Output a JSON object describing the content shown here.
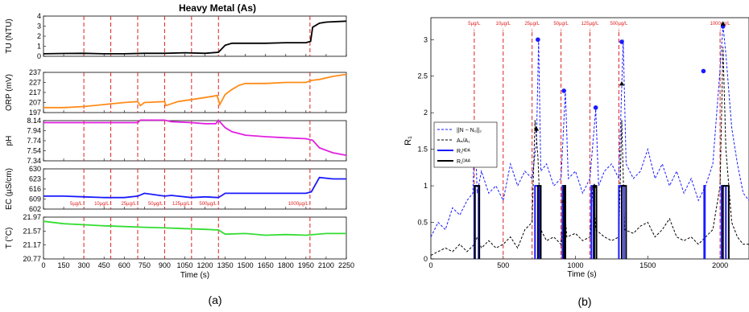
{
  "panel_labels": {
    "a": "(a)",
    "b": "(b)"
  },
  "chart_data": [
    {
      "type": "line",
      "panel": "a",
      "title": "Heavy Metal (As)",
      "xlabel": "Time (s)",
      "xlim": [
        0,
        2250
      ],
      "x_ticks": [
        0,
        150,
        300,
        450,
        600,
        750,
        900,
        1050,
        1200,
        1350,
        1500,
        1650,
        1800,
        1950,
        2100,
        2250
      ],
      "events": [
        {
          "x": 300,
          "label": "5µg/L"
        },
        {
          "x": 500,
          "label": "10µg/L"
        },
        {
          "x": 700,
          "label": "25µg/L"
        },
        {
          "x": 900,
          "label": "50µg/L"
        },
        {
          "x": 1100,
          "label": "125µg/L"
        },
        {
          "x": 1300,
          "label": "500µg/L"
        },
        {
          "x": 1980,
          "label": "1000µg/L"
        }
      ],
      "subplots": [
        {
          "ylabel": "TU (NTU)",
          "ylim": [
            0,
            4
          ],
          "y_ticks": [
            "0",
            "1",
            "2",
            "3",
            "4"
          ],
          "y_values": [
            0,
            1,
            2,
            3,
            4
          ],
          "color": "#000000",
          "series": {
            "x": [
              0,
              150,
              300,
              450,
              600,
              750,
              900,
              1050,
              1200,
              1300,
              1350,
              1400,
              1500,
              1650,
              1800,
              1950,
              1985,
              2000,
              2050,
              2100,
              2250
            ],
            "y": [
              0.25,
              0.28,
              0.3,
              0.25,
              0.25,
              0.3,
              0.3,
              0.35,
              0.3,
              0.4,
              1.1,
              1.3,
              1.3,
              1.3,
              1.35,
              1.35,
              1.5,
              2.9,
              3.3,
              3.4,
              3.5
            ]
          }
        },
        {
          "ylabel": "ORP (mV)",
          "ylim": [
            197,
            237
          ],
          "y_ticks": [
            "197",
            "207",
            "217",
            "227",
            "237"
          ],
          "y_values": [
            197,
            207,
            217,
            227,
            237
          ],
          "color": "#ff8c1a",
          "series": {
            "x": [
              0,
              150,
              300,
              450,
              600,
              700,
              720,
              750,
              900,
              910,
              1000,
              1100,
              1200,
              1290,
              1310,
              1350,
              1400,
              1450,
              1500,
              1650,
              1800,
              1950,
              1990,
              2050,
              2150,
              2250
            ],
            "y": [
              202,
              202,
              203,
              205,
              207,
              208,
              204,
              207,
              208,
              204,
              208,
              210,
              212,
              214,
              205,
              215,
              220,
              224,
              226,
              226,
              227,
              227,
              229,
              230,
              233,
              235
            ]
          }
        },
        {
          "ylabel": "pH",
          "ylim": [
            7.34,
            8.14
          ],
          "y_ticks": [
            "7.34",
            "7.54",
            "7.74",
            "7.94",
            "8.14"
          ],
          "y_values": [
            7.34,
            7.54,
            7.74,
            7.94,
            8.14
          ],
          "color": "#e020e0",
          "series": {
            "x": [
              0,
              150,
              300,
              450,
              600,
              700,
              720,
              900,
              950,
              1100,
              1200,
              1280,
              1300,
              1350,
              1400,
              1500,
              1650,
              1800,
              1950,
              2000,
              2050,
              2150,
              2250
            ],
            "y": [
              8.1,
              8.1,
              8.1,
              8.1,
              8.1,
              8.1,
              8.15,
              8.15,
              8.12,
              8.1,
              8.08,
              8.08,
              8.15,
              8.0,
              7.92,
              7.85,
              7.82,
              7.8,
              7.78,
              7.75,
              7.6,
              7.5,
              7.45
            ]
          }
        },
        {
          "ylabel": "EC (µS/cm)",
          "ylim": [
            602,
            630
          ],
          "y_ticks": [
            "602",
            "609",
            "616",
            "623",
            "630"
          ],
          "y_values": [
            602,
            609,
            616,
            623,
            630
          ],
          "color": "#1a1aff",
          "series": {
            "x": [
              0,
              150,
              300,
              450,
              600,
              700,
              750,
              900,
              950,
              1100,
              1200,
              1300,
              1350,
              1500,
              1650,
              1800,
              1950,
              1990,
              2050,
              2150,
              2250
            ],
            "y": [
              611,
              611,
              610.5,
              610,
              610,
              611,
              613,
              611,
              611.5,
              610,
              610.5,
              610,
              613,
              613,
              613,
              613,
              613,
              614,
              624,
              623,
              623
            ]
          }
        },
        {
          "ylabel": "T (°C)",
          "ylim": [
            20.77,
            21.97
          ],
          "y_ticks": [
            "20.77",
            "21.17",
            "21.57",
            "21.97"
          ],
          "y_values": [
            20.77,
            21.17,
            21.57,
            21.97
          ],
          "color": "#33dd33",
          "series": {
            "x": [
              0,
              150,
              300,
              450,
              600,
              750,
              900,
              1050,
              1200,
              1300,
              1350,
              1500,
              1650,
              1800,
              1950,
              2100,
              2250
            ],
            "y": [
              21.85,
              21.78,
              21.75,
              21.72,
              21.7,
              21.68,
              21.66,
              21.64,
              21.62,
              21.6,
              21.48,
              21.5,
              21.45,
              21.47,
              21.45,
              21.5,
              21.5
            ]
          }
        }
      ]
    },
    {
      "type": "line",
      "panel": "b",
      "xlabel": "Time (s)",
      "ylabel": "R₁",
      "xlim": [
        0,
        2200
      ],
      "ylim": [
        0,
        3.3
      ],
      "x_ticks": [
        0,
        500,
        1000,
        1500,
        2000
      ],
      "y_ticks": [
        0,
        0.5,
        1,
        1.5,
        2,
        2.5,
        3
      ],
      "legend_position": "left",
      "events": [
        {
          "x": 300,
          "label": "5µg/L"
        },
        {
          "x": 500,
          "label": "10µg/L"
        },
        {
          "x": 700,
          "label": "25µg/L"
        },
        {
          "x": 900,
          "label": "50µg/L"
        },
        {
          "x": 1100,
          "label": "125µg/L"
        },
        {
          "x": 1300,
          "label": "500µg/L"
        },
        {
          "x": 2000,
          "label": "1000µg/L"
        }
      ],
      "series": [
        {
          "name": "||N − N₀||₂",
          "color": "#1a1aff",
          "style": "dashed",
          "x": [
            0,
            50,
            100,
            150,
            200,
            250,
            290,
            305,
            320,
            350,
            400,
            450,
            500,
            550,
            600,
            650,
            700,
            730,
            745,
            760,
            800,
            850,
            900,
            930,
            950,
            1000,
            1050,
            1100,
            1140,
            1160,
            1200,
            1250,
            1300,
            1330,
            1350,
            1400,
            1450,
            1500,
            1550,
            1600,
            1650,
            1700,
            1750,
            1800,
            1850,
            1900,
            1950,
            2000,
            2020,
            2040,
            2080,
            2120,
            2160,
            2200
          ],
          "y": [
            0.3,
            0.5,
            0.4,
            0.7,
            0.6,
            0.8,
            0.9,
            1.8,
            0.9,
            1.2,
            0.9,
            1.0,
            0.8,
            1.3,
            1.0,
            1.2,
            1.1,
            1.6,
            3.0,
            1.2,
            1.3,
            1.0,
            1.1,
            2.3,
            1.1,
            1.2,
            0.9,
            1.1,
            2.05,
            1.0,
            1.2,
            1.3,
            1.1,
            3.0,
            1.3,
            1.1,
            1.2,
            1.5,
            1.1,
            1.3,
            1.0,
            1.2,
            0.9,
            1.1,
            0.8,
            1.0,
            1.3,
            2.6,
            3.2,
            2.8,
            1.8,
            1.3,
            0.9,
            0.8
          ]
        },
        {
          "name": "Aₙ/A₁",
          "color": "#000000",
          "style": "dashed",
          "x": [
            0,
            50,
            100,
            150,
            200,
            250,
            300,
            320,
            350,
            400,
            450,
            500,
            550,
            600,
            650,
            700,
            720,
            740,
            760,
            800,
            850,
            900,
            920,
            940,
            1000,
            1050,
            1100,
            1120,
            1140,
            1200,
            1250,
            1300,
            1320,
            1340,
            1400,
            1450,
            1500,
            1550,
            1600,
            1650,
            1700,
            1750,
            1800,
            1850,
            1900,
            1950,
            2000,
            2020,
            2040,
            2080,
            2120,
            2160,
            2200
          ],
          "y": [
            0.05,
            0.1,
            0.15,
            0.1,
            0.2,
            0.1,
            0.2,
            0.3,
            0.15,
            0.25,
            0.15,
            0.2,
            0.3,
            0.15,
            0.4,
            0.5,
            1.9,
            1.4,
            0.4,
            0.25,
            0.3,
            0.2,
            0.8,
            0.3,
            0.35,
            0.25,
            0.3,
            1.0,
            0.4,
            0.3,
            0.25,
            0.3,
            1.9,
            0.4,
            0.35,
            0.45,
            0.5,
            0.3,
            0.4,
            0.55,
            0.3,
            0.25,
            0.3,
            0.2,
            0.3,
            0.4,
            1.0,
            2.9,
            1.5,
            0.5,
            0.3,
            0.2,
            0.2
          ]
        },
        {
          "name": "R₁ᴴᴰᴬ",
          "color": "#1a1aff",
          "style": "solid",
          "spikes": [
            {
              "x0": 300,
              "x1": 330,
              "h": 1.0
            },
            {
              "x0": 720,
              "x1": 750,
              "h": 1.0
            },
            {
              "x0": 910,
              "x1": 925,
              "h": 1.0
            },
            {
              "x0": 1110,
              "x1": 1125,
              "h": 1.0
            },
            {
              "x0": 1300,
              "x1": 1335,
              "h": 1.0
            },
            {
              "x0": 1890,
              "x1": 1895,
              "h": 1.0
            },
            {
              "x0": 2010,
              "x1": 2040,
              "h": 1.0
            }
          ]
        },
        {
          "name": "R₁ᴰᴬᴬ",
          "color": "#000000",
          "style": "solid",
          "spikes": [
            {
              "x0": 305,
              "x1": 335,
              "h": 1.0
            },
            {
              "x0": 740,
              "x1": 760,
              "h": 1.0
            },
            {
              "x0": 920,
              "x1": 930,
              "h": 1.0
            },
            {
              "x0": 1130,
              "x1": 1145,
              "h": 1.0
            },
            {
              "x0": 1320,
              "x1": 1350,
              "h": 1.0
            },
            {
              "x0": 2020,
              "x1": 2060,
              "h": 1.0
            }
          ]
        }
      ],
      "markers": {
        "blue_dots": [
          {
            "x": 740,
            "y": 3.0
          },
          {
            "x": 920,
            "y": 2.3
          },
          {
            "x": 1140,
            "y": 2.07
          },
          {
            "x": 1320,
            "y": 2.97
          },
          {
            "x": 1885,
            "y": 2.57
          },
          {
            "x": 2020,
            "y": 3.18
          }
        ],
        "black_triangles": [
          {
            "x": 730,
            "y": 1.78
          },
          {
            "x": 920,
            "y": 0.8
          },
          {
            "x": 1130,
            "y": 1.0
          },
          {
            "x": 1320,
            "y": 2.4
          },
          {
            "x": 2020,
            "y": 3.22
          }
        ]
      }
    }
  ]
}
